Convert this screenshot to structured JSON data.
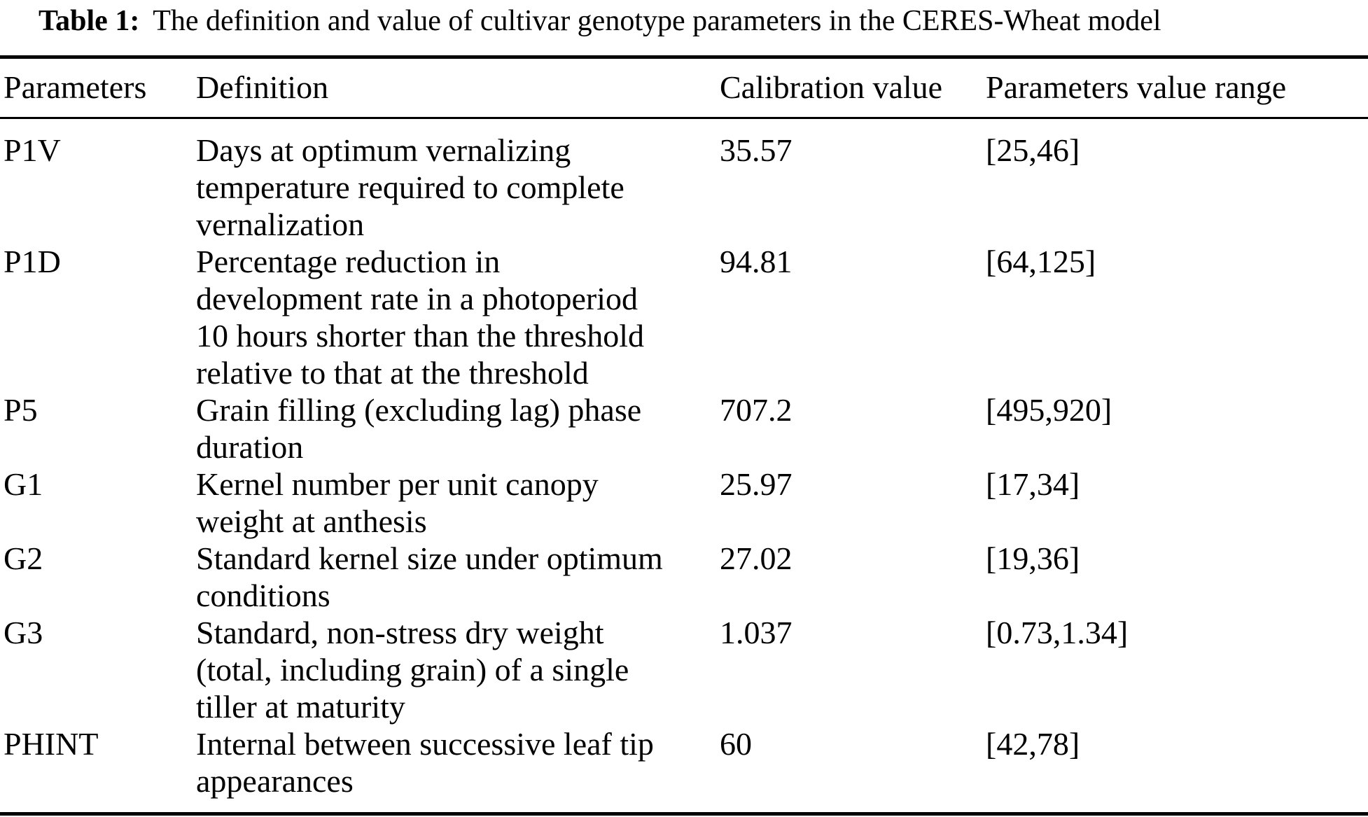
{
  "title": {
    "label": "Table 1:",
    "text": "The definition and value of cultivar genotype parameters in the CERES-Wheat model"
  },
  "table": {
    "headers": {
      "parameter": "Parameters",
      "definition": "Definition",
      "calibration": "Calibration value",
      "range": "Parameters value range"
    },
    "rows": [
      {
        "parameter": "P1V",
        "definition": "Days at optimum vernalizing\ntemperature required to complete\nvernalization",
        "calibration": "35.57",
        "range": "[25,46]"
      },
      {
        "parameter": "P1D",
        "definition": "Percentage reduction in\ndevelopment rate in a photoperiod\n10 hours shorter than the threshold\nrelative to that at the threshold",
        "calibration": "94.81",
        "range": "[64,125]"
      },
      {
        "parameter": "P5",
        "definition": "Grain filling (excluding lag) phase\nduration",
        "calibration": "707.2",
        "range": "[495,920]"
      },
      {
        "parameter": "G1",
        "definition": "Kernel number per unit canopy\nweight at anthesis",
        "calibration": "25.97",
        "range": "[17,34]"
      },
      {
        "parameter": "G2",
        "definition": "Standard kernel size under optimum\nconditions",
        "calibration": "27.02",
        "range": "[19,36]"
      },
      {
        "parameter": "G3",
        "definition": "Standard, non-stress dry weight\n(total, including grain) of a single\ntiller at maturity",
        "calibration": "1.037",
        "range": "[0.73,1.34]"
      },
      {
        "parameter": "PHINT",
        "definition": "Internal between successive leaf tip\nappearances",
        "calibration": "60",
        "range": "[42,78]"
      }
    ]
  }
}
